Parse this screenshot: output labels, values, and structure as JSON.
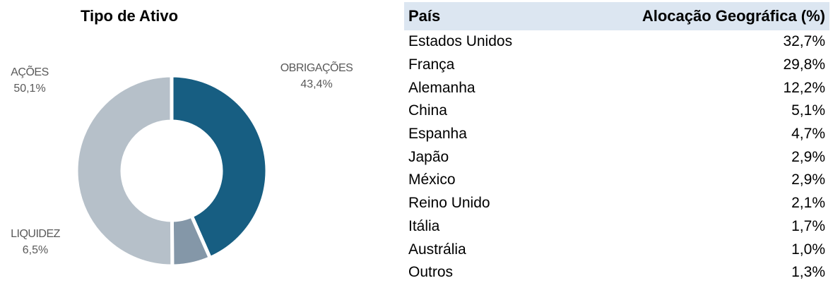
{
  "chart_data": {
    "type": "donut",
    "title": "Tipo de Ativo",
    "categories": [
      "OBRIGAÇÕES",
      "LIQUIDEZ",
      "AÇÕES"
    ],
    "values": [
      43.4,
      6.5,
      50.1
    ],
    "value_labels": [
      "43,4%",
      "6,5%",
      "50,1%"
    ],
    "colors": [
      "#175e82",
      "#8497a8",
      "#b6c0c9"
    ]
  },
  "table": {
    "header": [
      "País",
      "Alocação Geográfica (%)"
    ],
    "rows": [
      [
        "Estados Unidos",
        "32,7%"
      ],
      [
        "França",
        "29,8%"
      ],
      [
        "Alemanha",
        "12,2%"
      ],
      [
        "China",
        "5,1%"
      ],
      [
        "Espanha",
        "4,7%"
      ],
      [
        "Japão",
        "2,9%"
      ],
      [
        "México",
        "2,9%"
      ],
      [
        "Reino Unido",
        "2,1%"
      ],
      [
        "Itália",
        "1,7%"
      ],
      [
        "Austrália",
        "1,0%"
      ],
      [
        "Outros",
        "1,3%"
      ]
    ]
  }
}
